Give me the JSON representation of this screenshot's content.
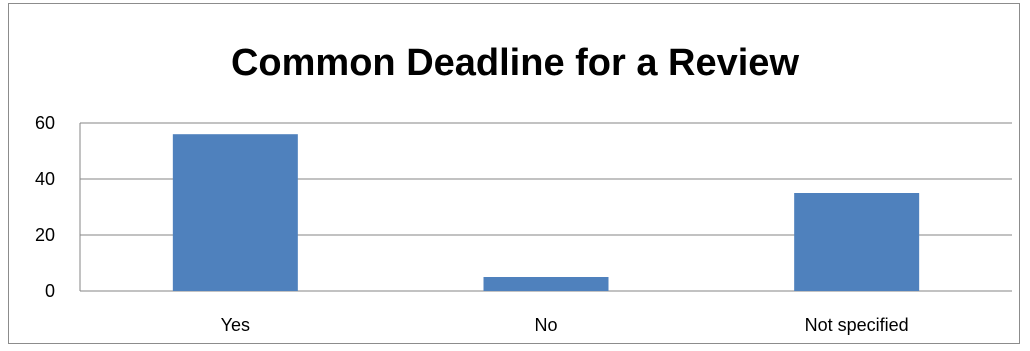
{
  "chart_data": {
    "type": "bar",
    "title": "Common Deadline for a Review",
    "xlabel": "",
    "ylabel": "",
    "categories": [
      "Yes",
      "No",
      "Not specified"
    ],
    "values": [
      56,
      5,
      35
    ],
    "ylim": [
      0,
      60
    ],
    "yticks": [
      "0",
      "20",
      "40",
      "60"
    ],
    "grid": true,
    "legend": "none",
    "colors": {
      "bar": "#4F81BD",
      "gridline": "#868686",
      "frame": "#8c8c8c"
    }
  }
}
